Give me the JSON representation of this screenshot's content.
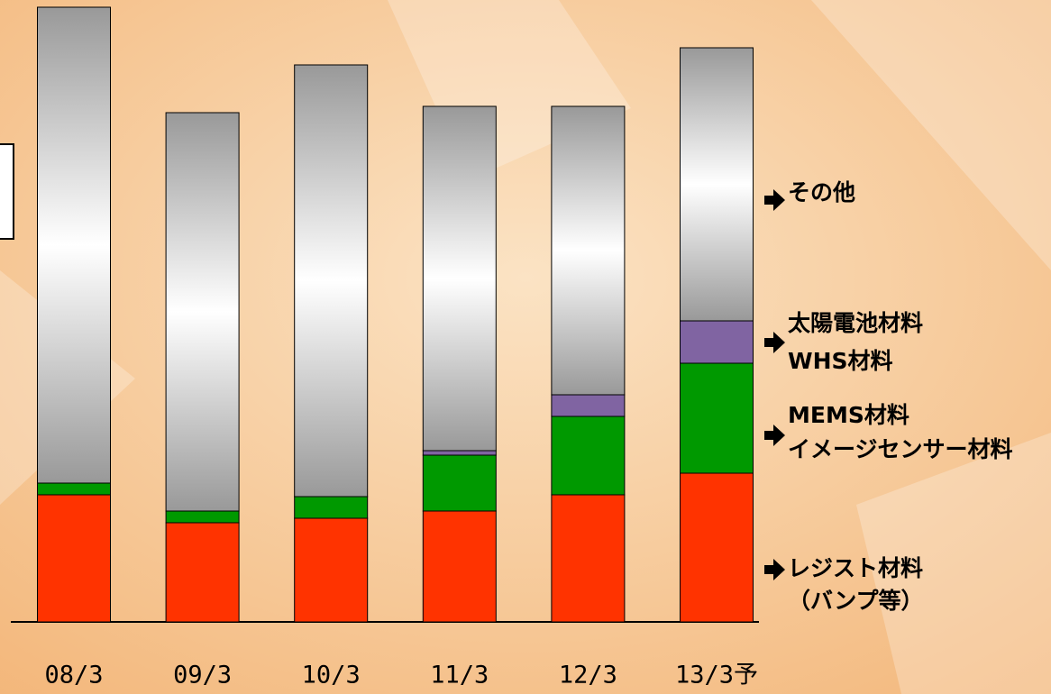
{
  "chart_data": {
    "type": "stacked_bar",
    "categories": [
      "08/3",
      "09/3",
      "10/3",
      "11/3",
      "12/3",
      "13/3予"
    ],
    "series": [
      {
        "name": [
          "レジスト材料",
          "（バンプ等）"
        ],
        "color": "#ff3300",
        "values": [
          141,
          110,
          115,
          123,
          141,
          165
        ]
      },
      {
        "name": [
          "MEMS材料",
          "イメージセンサー材料"
        ],
        "color": "#009900",
        "values": [
          13,
          13,
          24,
          62,
          87,
          122
        ]
      },
      {
        "name": [
          "太陽電池材料",
          "WHS材料"
        ],
        "color": "#8064a2",
        "values": [
          0,
          0,
          0,
          5,
          24,
          47
        ]
      },
      {
        "name": [
          "その他"
        ],
        "color": "#999999",
        "values": [
          528,
          442,
          479,
          382,
          320,
          303
        ]
      }
    ]
  }
}
